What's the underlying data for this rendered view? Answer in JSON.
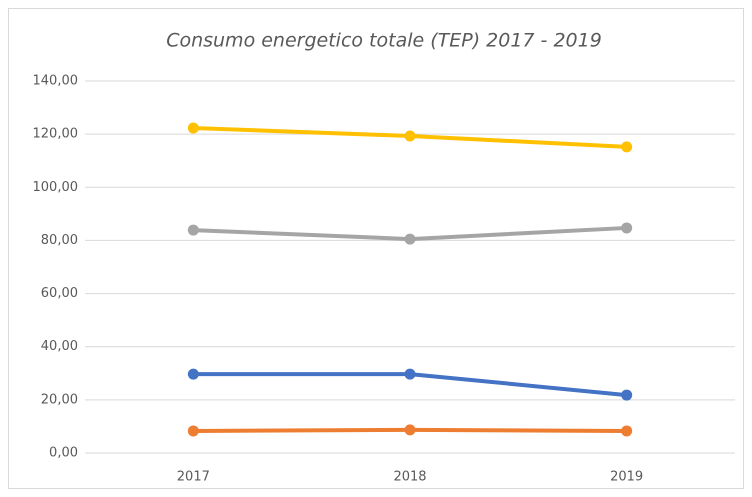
{
  "chart_data": {
    "type": "line",
    "title": "Consumo energetico totale (TEP) 2017 - 2019",
    "categories": [
      "2017",
      "2018",
      "2019"
    ],
    "series": [
      {
        "color": "#ffc000",
        "values": [
          122.3,
          119.3,
          115.2
        ]
      },
      {
        "color": "#a5a5a5",
        "values": [
          83.9,
          80.5,
          84.7
        ]
      },
      {
        "color": "#4472c4",
        "values": [
          29.7,
          29.7,
          21.8
        ]
      },
      {
        "color": "#ed7d31",
        "values": [
          8.3,
          8.7,
          8.3
        ]
      }
    ],
    "ylim": [
      0,
      140
    ],
    "yticks": [
      {
        "value": 0,
        "label": "0,00"
      },
      {
        "value": 20,
        "label": "20,00"
      },
      {
        "value": 40,
        "label": "40,00"
      },
      {
        "value": 60,
        "label": "60,00"
      },
      {
        "value": 80,
        "label": "80,00"
      },
      {
        "value": 100,
        "label": "100,00"
      },
      {
        "value": 120,
        "label": "120,00"
      },
      {
        "value": 140,
        "label": "140,00"
      }
    ],
    "grid": true
  }
}
